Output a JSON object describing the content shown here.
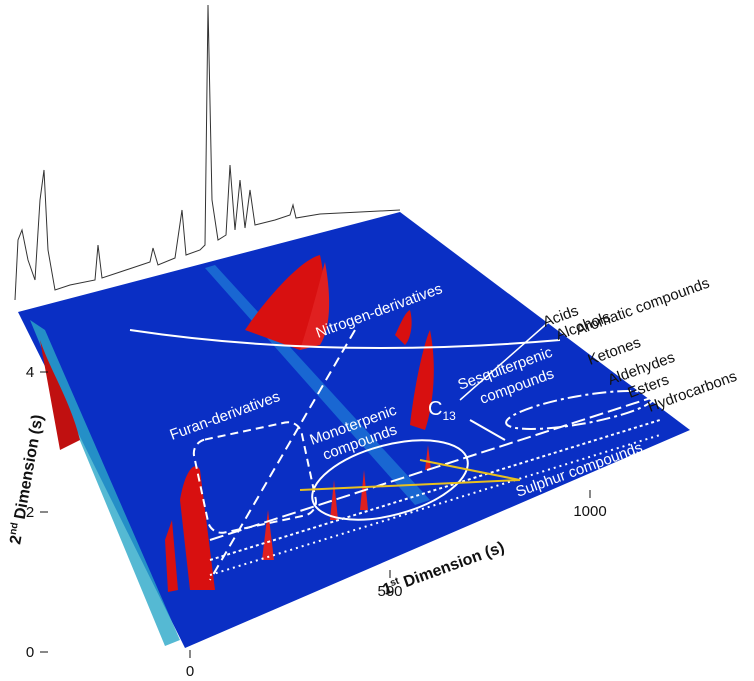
{
  "chart_data": {
    "type": "surface3d",
    "x_label": {
      "main": "1",
      "sup": "st",
      "rest": " Dimension (s)"
    },
    "y_label": {
      "main": "2",
      "sup": "nd",
      "rest": " Dimension (s)"
    },
    "xlim": [
      0,
      1250
    ],
    "xticks": [
      0,
      500,
      1000
    ],
    "ylim": [
      0,
      5
    ],
    "yticks": [
      0,
      2,
      4
    ],
    "annotations": {
      "nitrogen": "Nitrogen-derivatives",
      "acids": "Acids",
      "alcohols": "Alcohols",
      "aromatic": "Aromatic compounds",
      "ketones": "Ketones",
      "aldehydes": "Aldehydes",
      "esters": "Esters",
      "hydrocarbons": "Hydrocarbons",
      "sesquiterpenic": [
        "Sesquiterpenic",
        "compounds"
      ],
      "c13": {
        "base": "C",
        "sub": "13"
      },
      "monoterpenic": [
        "Monoterpenic",
        "compounds"
      ],
      "furan": "Furan-derivatives",
      "sulphur": "Sulphur compounds"
    }
  }
}
